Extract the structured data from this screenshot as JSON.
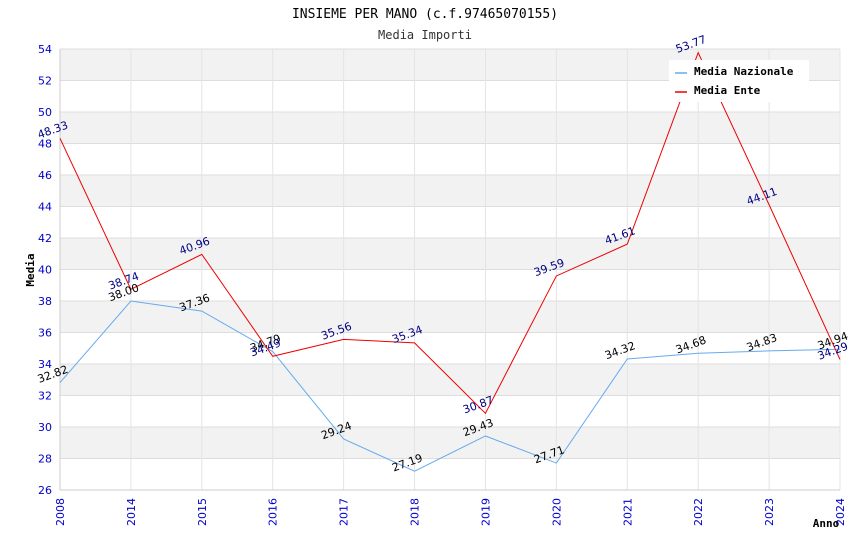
{
  "chart_data": {
    "type": "line",
    "title": "INSIEME PER MANO (c.f.97465070155)",
    "subtitle": "Media Importi",
    "xlabel": "Anno",
    "ylabel": "Media",
    "categories": [
      "2008",
      "2014",
      "2015",
      "2016",
      "2017",
      "2018",
      "2019",
      "2020",
      "2021",
      "2022",
      "2023",
      "2024"
    ],
    "ylim": [
      26,
      54
    ],
    "yticks": [
      26,
      28,
      30,
      32,
      34,
      36,
      38,
      40,
      42,
      44,
      46,
      48,
      50,
      52,
      54
    ],
    "grid": true,
    "legend_position": "top-right",
    "series": [
      {
        "name": "Media Nazionale",
        "color": "#66aaee",
        "label_color": "#000000",
        "values": [
          32.82,
          38.0,
          37.36,
          34.79,
          29.24,
          27.19,
          29.43,
          27.71,
          34.32,
          34.68,
          34.83,
          34.94
        ]
      },
      {
        "name": "Media Ente",
        "color": "#ee0000",
        "label_color": "#000080",
        "values": [
          48.33,
          38.74,
          40.96,
          34.49,
          35.56,
          35.34,
          30.87,
          39.59,
          41.61,
          53.77,
          44.11,
          34.29
        ]
      }
    ]
  }
}
